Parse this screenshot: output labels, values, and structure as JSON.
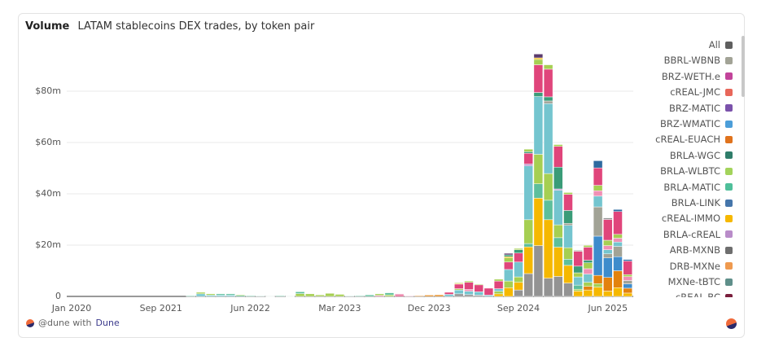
{
  "header": {
    "title": "Volume",
    "subtitle": "LATAM stablecoins DEX trades, by token pair"
  },
  "footer": {
    "handle": "@dune with",
    "brand": "Dune"
  },
  "chart_data": {
    "type": "bar",
    "stacked": true,
    "title": "Volume",
    "subtitle": "LATAM stablecoins DEX trades, by token pair",
    "xlabel": "",
    "ylabel": "",
    "ylim": [
      0,
      100
    ],
    "y_ticks": [
      {
        "value": 0,
        "label": "0"
      },
      {
        "value": 20,
        "label": "$20m"
      },
      {
        "value": 40,
        "label": "$40m"
      },
      {
        "value": 60,
        "label": "$60m"
      },
      {
        "value": 80,
        "label": "$80m"
      }
    ],
    "x_ticks": [
      {
        "index": 0,
        "label": "Jan 2020"
      },
      {
        "index": 9,
        "label": "Sep 2021"
      },
      {
        "index": 18,
        "label": "Jun 2022"
      },
      {
        "index": 27,
        "label": "Mar 2023"
      },
      {
        "index": 36,
        "label": "Dec 2023"
      },
      {
        "index": 45,
        "label": "Sep 2024"
      },
      {
        "index": 54,
        "label": "Jun 2025"
      }
    ],
    "grid": true,
    "legend_placement": "right",
    "legend": [
      {
        "label": "All",
        "color": "#5f5f5f"
      },
      {
        "label": "BBRL-WBNB",
        "color": "#a2a396"
      },
      {
        "label": "BRZ-WETH.e",
        "color": "#c2449a"
      },
      {
        "label": "cREAL-JMC",
        "color": "#e8675a"
      },
      {
        "label": "BRZ-MATIC",
        "color": "#7b52ab"
      },
      {
        "label": "BRZ-WMATIC",
        "color": "#4c9ed9"
      },
      {
        "label": "cREAL-EUACH",
        "color": "#e0731d"
      },
      {
        "label": "BRLA-WGC",
        "color": "#2f7d6a"
      },
      {
        "label": "BRLA-WLBTC",
        "color": "#a3d35b"
      },
      {
        "label": "BRLA-MATIC",
        "color": "#4fbf9a"
      },
      {
        "label": "BRLA-LINK",
        "color": "#4576ab"
      },
      {
        "label": "cREAL-IMMO",
        "color": "#f6b800"
      },
      {
        "label": "BRLA-cREAL",
        "color": "#b98cc9"
      },
      {
        "label": "ARB-MXNB",
        "color": "#6e6e6e"
      },
      {
        "label": "DRB-MXNe",
        "color": "#ef9a4f"
      },
      {
        "label": "MXNe-tBTC",
        "color": "#5f8f8a"
      },
      {
        "label": "cREAL-BC",
        "color": "#7a1f3d"
      }
    ],
    "series_colors": [
      "#939393",
      "#f5b800",
      "#5dbf9c",
      "#a6cf52",
      "#74c5cf",
      "#3a9c78",
      "#3e8ccc",
      "#e3820e",
      "#a2a396",
      "#f090b5",
      "#e0457b",
      "#2e6aa0",
      "#5b3b6e",
      "#b98cc9"
    ],
    "bars": [
      [],
      [],
      [],
      [],
      [],
      [],
      [],
      [],
      [],
      [],
      [],
      [],
      [
        [
          2,
          0.3
        ]
      ],
      [
        [
          4,
          1
        ],
        [
          3,
          0.6
        ]
      ],
      [
        [
          4,
          0.5
        ],
        [
          3,
          0.5
        ]
      ],
      [
        [
          4,
          0.5
        ],
        [
          2,
          0.5
        ]
      ],
      [
        [
          4,
          0.5
        ],
        [
          2,
          0.5
        ]
      ],
      [
        [
          2,
          0.4
        ],
        [
          3,
          0.3
        ]
      ],
      [
        [
          2,
          0.3
        ]
      ],
      [
        [
          2,
          0.2
        ]
      ],
      [
        [
          2,
          0.1
        ]
      ],
      [
        [
          2,
          0.3
        ]
      ],
      [
        [
          2,
          0.1
        ]
      ],
      [
        [
          3,
          1.1
        ],
        [
          2,
          0.7
        ]
      ],
      [
        [
          3,
          1
        ]
      ],
      [
        [
          3,
          0.6
        ]
      ],
      [
        [
          3,
          1.2
        ]
      ],
      [
        [
          3,
          0.8
        ]
      ],
      [
        [
          2,
          0.2
        ]
      ],
      [
        [
          2,
          0.3
        ]
      ],
      [
        [
          2,
          0.6
        ]
      ],
      [
        [
          9,
          0.4
        ],
        [
          3,
          0.6
        ]
      ],
      [
        [
          3,
          0.6
        ],
        [
          2,
          0.8
        ]
      ],
      [
        [
          10,
          0.6
        ],
        [
          9,
          0.4
        ]
      ],
      [
        [
          10,
          0.2
        ]
      ],
      [
        [
          7,
          0.3
        ]
      ],
      [
        [
          7,
          0.5
        ]
      ],
      [
        [
          7,
          0.6
        ]
      ],
      [
        [
          4,
          0.8
        ],
        [
          10,
          0.8
        ]
      ],
      [
        [
          0,
          1
        ],
        [
          4,
          1.5
        ],
        [
          3,
          0.5
        ],
        [
          10,
          1.8
        ],
        [
          1,
          0.3
        ],
        [
          3,
          0.3
        ]
      ],
      [
        [
          0,
          0.7
        ],
        [
          4,
          1.3
        ],
        [
          9,
          0.7
        ],
        [
          10,
          2.8
        ],
        [
          3,
          0.5
        ]
      ],
      [
        [
          0,
          0.5
        ],
        [
          4,
          1.3
        ],
        [
          10,
          2.7
        ],
        [
          3,
          0.3
        ]
      ],
      [
        [
          4,
          0.5
        ],
        [
          10,
          2.7
        ]
      ],
      [
        [
          1,
          1
        ],
        [
          3,
          1
        ],
        [
          4,
          1
        ],
        [
          10,
          3
        ],
        [
          3,
          0.7
        ]
      ],
      [
        [
          1,
          3.4
        ],
        [
          3,
          2.6
        ],
        [
          4,
          4.5
        ],
        [
          10,
          2.9
        ],
        [
          3,
          1.6
        ],
        [
          1,
          0.5
        ],
        [
          5,
          0.7
        ],
        [
          12,
          0.6
        ]
      ],
      [
        [
          0,
          2.5
        ],
        [
          1,
          3
        ],
        [
          3,
          2.1
        ],
        [
          4,
          5.8
        ],
        [
          10,
          3.5
        ],
        [
          5,
          1.3
        ],
        [
          3,
          0.5
        ]
      ],
      [
        [
          0,
          8.9
        ],
        [
          1,
          10.4
        ],
        [
          2,
          1.3
        ],
        [
          3,
          9.3
        ],
        [
          4,
          21
        ],
        [
          13,
          0.7
        ],
        [
          10,
          4.2
        ],
        [
          5,
          0.6
        ],
        [
          3,
          1
        ]
      ],
      [
        [
          0,
          19.8
        ],
        [
          1,
          18.5
        ],
        [
          2,
          5.6
        ],
        [
          3,
          11.5
        ],
        [
          4,
          22.5
        ],
        [
          5,
          1.6
        ],
        [
          10,
          10.8
        ],
        [
          3,
          2.1
        ],
        [
          1,
          0.6
        ],
        [
          12,
          1.5
        ]
      ],
      [
        [
          0,
          7.1
        ],
        [
          1,
          22.8
        ],
        [
          2,
          7.6
        ],
        [
          3,
          10.4
        ],
        [
          4,
          27.3
        ],
        [
          8,
          1
        ],
        [
          5,
          1.6
        ],
        [
          10,
          10.8
        ],
        [
          3,
          1.7
        ]
      ],
      [
        [
          0,
          7.8
        ],
        [
          1,
          11.4
        ],
        [
          2,
          3.7
        ],
        [
          3,
          5
        ],
        [
          4,
          13.5
        ],
        [
          13,
          0.5
        ],
        [
          5,
          8.5
        ],
        [
          10,
          8.1
        ],
        [
          3,
          0.7
        ]
      ],
      [
        [
          0,
          5.2
        ],
        [
          1,
          6.9
        ],
        [
          2,
          2.4
        ],
        [
          3,
          4.5
        ],
        [
          4,
          8.7
        ],
        [
          8,
          0.8
        ],
        [
          5,
          5
        ],
        [
          10,
          6.3
        ],
        [
          3,
          0.7
        ]
      ],
      [
        [
          1,
          2.1
        ],
        [
          3,
          0.7
        ],
        [
          2,
          1.6
        ],
        [
          4,
          3.2
        ],
        [
          3,
          1.6
        ],
        [
          5,
          2.6
        ],
        [
          10,
          5.8
        ],
        [
          8,
          0.4
        ]
      ],
      [
        [
          1,
          2.5
        ],
        [
          7,
          1.4
        ],
        [
          3,
          1.6
        ],
        [
          4,
          3.2
        ],
        [
          9,
          2.1
        ],
        [
          3,
          2.3
        ],
        [
          5,
          1
        ],
        [
          10,
          5.1
        ],
        [
          3,
          0.7
        ]
      ],
      [
        [
          1,
          3.6
        ],
        [
          3,
          1.4
        ],
        [
          7,
          3.2
        ],
        [
          6,
          15.3
        ],
        [
          8,
          11.4
        ],
        [
          4,
          4.2
        ],
        [
          9,
          2.1
        ],
        [
          3,
          2.1
        ],
        [
          10,
          6.8
        ],
        [
          11,
          2.8
        ]
      ],
      [
        [
          1,
          2.1
        ],
        [
          7,
          5.3
        ],
        [
          6,
          7.6
        ],
        [
          8,
          1.6
        ],
        [
          4,
          1.6
        ],
        [
          9,
          1.6
        ],
        [
          3,
          2.1
        ],
        [
          10,
          8.1
        ],
        [
          0,
          0.6
        ]
      ],
      [
        [
          1,
          3.4
        ],
        [
          7,
          6.6
        ],
        [
          6,
          5.5
        ],
        [
          8,
          4
        ],
        [
          4,
          1.7
        ],
        [
          9,
          1.5
        ],
        [
          3,
          1.5
        ],
        [
          10,
          8.9
        ],
        [
          11,
          0.8
        ]
      ],
      [
        [
          1,
          1.3
        ],
        [
          7,
          1.9
        ],
        [
          6,
          1.7
        ],
        [
          8,
          1.3
        ],
        [
          9,
          1.5
        ],
        [
          3,
          0.8
        ],
        [
          10,
          5.3
        ],
        [
          11,
          0.6
        ]
      ]
    ]
  }
}
